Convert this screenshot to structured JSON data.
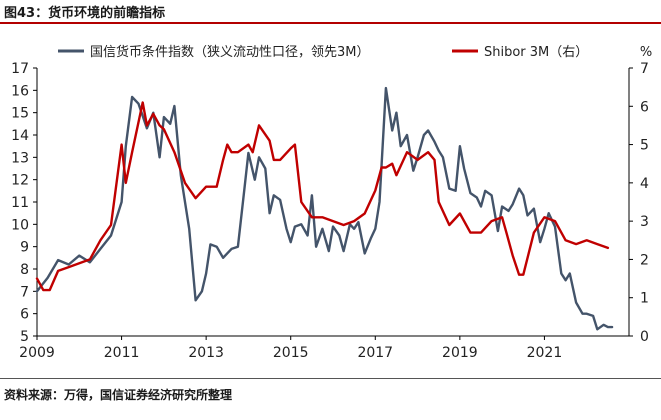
{
  "figure": {
    "title": "图43：货币环境的前瞻指标",
    "source": "资料来源：万得，国信证券经济研究所整理"
  },
  "chart_data": {
    "type": "line",
    "xlabel": "",
    "x_tick_labels": [
      "2009",
      "2011",
      "2013",
      "2015",
      "2017",
      "2019",
      "2021"
    ],
    "xlim": [
      2009.0,
      2023.0
    ],
    "ylim_left": [
      5,
      17
    ],
    "ylim_right": [
      0,
      7
    ],
    "left_ticks": [
      "5",
      "6",
      "7",
      "8",
      "9",
      "10",
      "11",
      "12",
      "13",
      "14",
      "15",
      "16",
      "17"
    ],
    "right_ticks": [
      "0",
      "1",
      "2",
      "3",
      "4",
      "5",
      "6",
      "7"
    ],
    "right_unit": "%",
    "grid": false,
    "legend_position": "top",
    "series": [
      {
        "name": "国信货币条件指数（狭义流动性口径，领先3M）",
        "axis": "left",
        "color": "#44546a",
        "x": [
          2009.0,
          2009.25,
          2009.5,
          2009.75,
          2010.0,
          2010.25,
          2010.5,
          2010.75,
          2011.0,
          2011.1,
          2011.25,
          2011.4,
          2011.6,
          2011.75,
          2011.9,
          2012.0,
          2012.15,
          2012.25,
          2012.4,
          2012.6,
          2012.75,
          2012.9,
          2013.0,
          2013.1,
          2013.25,
          2013.4,
          2013.6,
          2013.75,
          2013.9,
          2014.0,
          2014.15,
          2014.25,
          2014.4,
          2014.5,
          2014.6,
          2014.75,
          2014.9,
          2015.0,
          2015.1,
          2015.25,
          2015.4,
          2015.5,
          2015.6,
          2015.75,
          2015.9,
          2016.0,
          2016.15,
          2016.25,
          2016.4,
          2016.5,
          2016.6,
          2016.75,
          2016.9,
          2017.0,
          2017.1,
          2017.25,
          2017.4,
          2017.5,
          2017.6,
          2017.75,
          2017.9,
          2018.0,
          2018.15,
          2018.25,
          2018.4,
          2018.5,
          2018.6,
          2018.75,
          2018.9,
          2019.0,
          2019.1,
          2019.25,
          2019.4,
          2019.5,
          2019.6,
          2019.75,
          2019.9,
          2020.0,
          2020.15,
          2020.25,
          2020.4,
          2020.5,
          2020.6,
          2020.75,
          2020.9,
          2021.0,
          2021.1,
          2021.25,
          2021.4,
          2021.5,
          2021.6,
          2021.75,
          2021.9,
          2022.0,
          2022.15,
          2022.25,
          2022.4,
          2022.5,
          2022.6
        ],
        "values": [
          7.0,
          7.6,
          8.4,
          8.2,
          8.6,
          8.3,
          8.9,
          9.5,
          11.0,
          13.5,
          15.7,
          15.4,
          14.3,
          15.0,
          13.0,
          14.8,
          14.5,
          15.3,
          12.2,
          9.8,
          6.6,
          7.0,
          7.8,
          9.1,
          9.0,
          8.5,
          8.9,
          9.0,
          11.5,
          13.2,
          12.0,
          13.0,
          12.5,
          10.5,
          11.3,
          11.1,
          9.8,
          9.2,
          9.9,
          10.0,
          9.5,
          11.3,
          9.0,
          9.8,
          8.8,
          9.9,
          9.5,
          8.8,
          10.0,
          9.8,
          10.1,
          8.7,
          9.4,
          9.8,
          11.0,
          16.1,
          14.2,
          15.0,
          13.5,
          14.0,
          12.4,
          13.0,
          14.0,
          14.2,
          13.7,
          13.3,
          13.0,
          11.6,
          11.5,
          13.5,
          12.5,
          11.4,
          11.2,
          10.8,
          11.5,
          11.3,
          9.7,
          10.8,
          10.6,
          10.9,
          11.6,
          11.3,
          10.4,
          10.7,
          9.2,
          9.8,
          10.5,
          9.9,
          7.8,
          7.5,
          7.8,
          6.5,
          6.0,
          6.0,
          5.9,
          5.3,
          5.5,
          5.4,
          5.4
        ]
      },
      {
        "name": "Shibor 3M（右）",
        "axis": "right",
        "color": "#c00000",
        "x": [
          2009.0,
          2009.15,
          2009.3,
          2009.5,
          2009.75,
          2010.0,
          2010.25,
          2010.5,
          2010.75,
          2011.0,
          2011.1,
          2011.25,
          2011.5,
          2011.6,
          2011.75,
          2011.9,
          2012.0,
          2012.25,
          2012.5,
          2012.75,
          2013.0,
          2013.25,
          2013.4,
          2013.5,
          2013.6,
          2013.75,
          2014.0,
          2014.1,
          2014.25,
          2014.5,
          2014.6,
          2014.75,
          2015.0,
          2015.1,
          2015.25,
          2015.5,
          2015.75,
          2016.0,
          2016.25,
          2016.5,
          2016.75,
          2017.0,
          2017.15,
          2017.25,
          2017.4,
          2017.5,
          2017.75,
          2018.0,
          2018.25,
          2018.4,
          2018.5,
          2018.75,
          2019.0,
          2019.25,
          2019.5,
          2019.75,
          2020.0,
          2020.1,
          2020.25,
          2020.4,
          2020.5,
          2020.75,
          2021.0,
          2021.25,
          2021.5,
          2021.75,
          2022.0,
          2022.25,
          2022.5
        ],
        "values": [
          1.5,
          1.2,
          1.2,
          1.7,
          1.8,
          1.9,
          2.0,
          2.5,
          2.9,
          5.0,
          4.0,
          4.8,
          6.1,
          5.5,
          5.8,
          5.5,
          5.4,
          4.8,
          4.0,
          3.6,
          3.9,
          3.9,
          4.6,
          5.0,
          4.8,
          4.8,
          5.0,
          4.8,
          5.5,
          5.1,
          4.6,
          4.6,
          4.9,
          5.0,
          3.5,
          3.1,
          3.1,
          3.0,
          2.9,
          3.0,
          3.2,
          3.8,
          4.4,
          4.4,
          4.5,
          4.2,
          4.8,
          4.6,
          4.8,
          4.6,
          3.5,
          2.9,
          3.2,
          2.7,
          2.7,
          3.0,
          3.1,
          2.7,
          2.1,
          1.6,
          1.6,
          2.7,
          3.1,
          3.0,
          2.5,
          2.4,
          2.5,
          2.4,
          2.3
        ]
      }
    ]
  }
}
